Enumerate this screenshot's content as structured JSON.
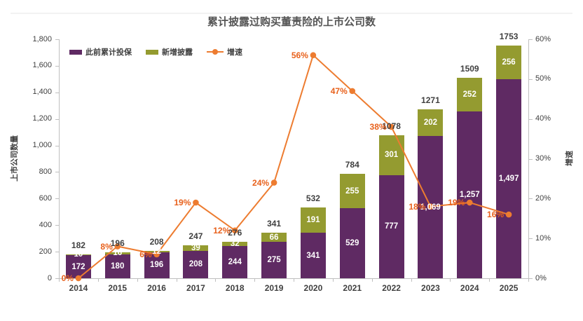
{
  "title": "累计披露过购买董责险的上市公司数",
  "legend": [
    {
      "label": "此前累计投保",
      "color": "#5F2A63"
    },
    {
      "label": "新增披露",
      "color": "#949B30"
    },
    {
      "label": "增速",
      "color": "#ED7C30"
    }
  ],
  "colors": {
    "prior_bar": "#5F2A63",
    "new_bar": "#949B30",
    "growth_line": "#ED7C30",
    "growth_marker": "#ED7C30",
    "growth_label": "#E8611C",
    "total_label": "#3F3F3F",
    "axis": "#BFBFBF"
  },
  "chart_data": {
    "type": "bar",
    "subtype": "stacked-bar-with-line",
    "title": "累计披露过购买董责险的上市公司数",
    "categories": [
      "2014",
      "2015",
      "2016",
      "2017",
      "2018",
      "2019",
      "2020",
      "2021",
      "2022",
      "2023",
      "2024",
      "2025"
    ],
    "series": [
      {
        "name": "此前累计投保",
        "type": "bar",
        "stack": "companies",
        "color": "#5F2A63",
        "values": [
          172,
          180,
          196,
          208,
          244,
          275,
          341,
          529,
          777,
          1069,
          1257,
          1497
        ],
        "labels": [
          "172",
          "180",
          "196",
          "208",
          "244",
          "275",
          "341",
          "529",
          "777",
          "1,069",
          "1,257",
          "1,497"
        ]
      },
      {
        "name": "新增披露",
        "type": "bar",
        "stack": "companies",
        "color": "#949B30",
        "values": [
          10,
          16,
          12,
          39,
          32,
          66,
          191,
          255,
          301,
          202,
          252,
          256
        ],
        "labels": [
          "10",
          "16",
          "12",
          "39",
          "32",
          "66",
          "191",
          "255",
          "301",
          "202",
          "252",
          "256"
        ]
      },
      {
        "name": "增速",
        "type": "line",
        "axis": "right",
        "color": "#ED7C30",
        "values": [
          0,
          8,
          6,
          19,
          12,
          24,
          56,
          47,
          38,
          18,
          19,
          16
        ],
        "labels": [
          "0%",
          "8%",
          "6%",
          "19%",
          "12%",
          "24%",
          "56%",
          "47%",
          "38%",
          "18%",
          "19%",
          "16%"
        ]
      }
    ],
    "totals": {
      "values": [
        182,
        196,
        208,
        247,
        276,
        341,
        532,
        784,
        1078,
        1271,
        1509,
        1753
      ],
      "labels": [
        "182",
        "196",
        "208",
        "247",
        "276",
        "341",
        "532",
        "784",
        "1078",
        "1271",
        "1509",
        "1753"
      ]
    },
    "left_axis": {
      "label": "上市公司数量",
      "min": 0,
      "max": 1800,
      "step": 200,
      "ticks": [
        "0",
        "200",
        "400",
        "600",
        "800",
        "1,000",
        "1,200",
        "1,400",
        "1,600",
        "1,800"
      ]
    },
    "right_axis": {
      "label": "增速",
      "min": 0,
      "max": 60,
      "step": 10,
      "ticks": [
        "0%",
        "10%",
        "20%",
        "30%",
        "40%",
        "50%",
        "60%"
      ]
    },
    "grid": false,
    "legend_position": "top-left-inside"
  }
}
